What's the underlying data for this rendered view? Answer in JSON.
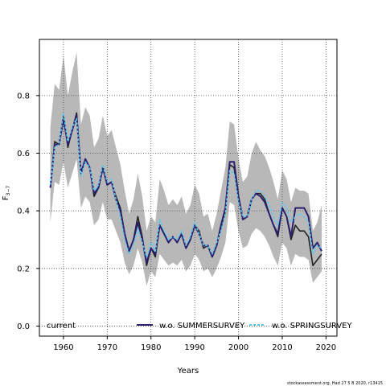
{
  "chart_data": {
    "type": "line",
    "xlabel": "Years",
    "ylabel": "F",
    "ylabel_sub": "3−7",
    "xlim": [
      1954.5,
      2022.5
    ],
    "ylim": [
      -0.035,
      0.995
    ],
    "xticks": [
      1960,
      1970,
      1980,
      1990,
      2000,
      2010,
      2020
    ],
    "yticks": [
      0.0,
      0.2,
      0.4,
      0.6,
      0.8
    ],
    "ytick_labels": [
      "0.0",
      "0.2",
      "0.4",
      "0.6",
      "0.8"
    ],
    "grid": "dotted",
    "legend_position": "bottom",
    "x": [
      1957,
      1958,
      1959,
      1960,
      1961,
      1962,
      1963,
      1964,
      1965,
      1966,
      1967,
      1968,
      1969,
      1970,
      1971,
      1972,
      1973,
      1974,
      1975,
      1976,
      1977,
      1978,
      1979,
      1980,
      1981,
      1982,
      1983,
      1984,
      1985,
      1986,
      1987,
      1988,
      1989,
      1990,
      1991,
      1992,
      1993,
      1994,
      1995,
      1996,
      1997,
      1998,
      1999,
      2000,
      2001,
      2002,
      2003,
      2004,
      2005,
      2006,
      2007,
      2008,
      2009,
      2010,
      2011,
      2012,
      2013,
      2014,
      2015,
      2016,
      2017,
      2018,
      2019
    ],
    "series": [
      {
        "name": "current",
        "color": "#222222",
        "dash": "",
        "values": [
          0.48,
          0.64,
          0.63,
          0.73,
          0.62,
          0.68,
          0.74,
          0.53,
          0.58,
          0.55,
          0.45,
          0.48,
          0.55,
          0.49,
          0.5,
          0.45,
          0.41,
          0.32,
          0.26,
          0.3,
          0.38,
          0.31,
          0.21,
          0.27,
          0.24,
          0.35,
          0.32,
          0.29,
          0.31,
          0.29,
          0.32,
          0.27,
          0.3,
          0.35,
          0.33,
          0.27,
          0.28,
          0.24,
          0.28,
          0.34,
          0.4,
          0.56,
          0.55,
          0.44,
          0.37,
          0.38,
          0.44,
          0.46,
          0.46,
          0.44,
          0.39,
          0.35,
          0.31,
          0.41,
          0.38,
          0.3,
          0.35,
          0.33,
          0.33,
          0.31,
          0.21,
          0.23,
          0.25
        ]
      },
      {
        "name": "w.o. SUMMERSURVEY",
        "color": "#2a1f6e",
        "dash": "",
        "values": [
          0.48,
          0.63,
          0.63,
          0.72,
          0.63,
          0.68,
          0.73,
          0.53,
          0.58,
          0.55,
          0.46,
          0.48,
          0.55,
          0.49,
          0.5,
          0.44,
          0.4,
          0.32,
          0.26,
          0.3,
          0.36,
          0.3,
          0.22,
          0.27,
          0.25,
          0.35,
          0.32,
          0.29,
          0.31,
          0.29,
          0.32,
          0.27,
          0.3,
          0.35,
          0.32,
          0.28,
          0.28,
          0.24,
          0.28,
          0.35,
          0.41,
          0.57,
          0.57,
          0.45,
          0.37,
          0.38,
          0.44,
          0.46,
          0.45,
          0.43,
          0.39,
          0.35,
          0.32,
          0.41,
          0.38,
          0.31,
          0.41,
          0.41,
          0.41,
          0.38,
          0.27,
          0.29,
          0.26
        ]
      },
      {
        "name": "w.o. SPRINGSURVEY",
        "color": "#5bc8ee",
        "dash": "3,2",
        "values": [
          0.49,
          0.62,
          0.63,
          0.74,
          0.64,
          0.69,
          0.72,
          0.52,
          0.57,
          0.55,
          0.47,
          0.49,
          0.56,
          0.5,
          0.51,
          0.44,
          0.38,
          0.3,
          0.25,
          0.28,
          0.34,
          0.29,
          0.24,
          0.29,
          0.26,
          0.37,
          0.33,
          0.3,
          0.31,
          0.3,
          0.33,
          0.28,
          0.31,
          0.36,
          0.32,
          0.28,
          0.28,
          0.25,
          0.29,
          0.33,
          0.39,
          0.54,
          0.53,
          0.43,
          0.38,
          0.38,
          0.44,
          0.47,
          0.47,
          0.45,
          0.42,
          0.38,
          0.35,
          0.43,
          0.41,
          0.36,
          0.38,
          0.39,
          0.38,
          0.36,
          0.25,
          0.28,
          0.27
        ]
      }
    ],
    "confidence_band": {
      "color": "#b8b8b8",
      "upper": [
        0.69,
        0.84,
        0.82,
        0.94,
        0.8,
        0.88,
        0.95,
        0.7,
        0.76,
        0.73,
        0.62,
        0.65,
        0.73,
        0.66,
        0.68,
        0.62,
        0.56,
        0.47,
        0.39,
        0.44,
        0.53,
        0.45,
        0.33,
        0.38,
        0.36,
        0.51,
        0.47,
        0.42,
        0.44,
        0.42,
        0.45,
        0.39,
        0.42,
        0.49,
        0.46,
        0.38,
        0.39,
        0.33,
        0.39,
        0.47,
        0.55,
        0.71,
        0.7,
        0.58,
        0.5,
        0.52,
        0.6,
        0.64,
        0.61,
        0.59,
        0.55,
        0.5,
        0.44,
        0.54,
        0.51,
        0.43,
        0.48,
        0.47,
        0.47,
        0.46,
        0.33,
        0.36,
        0.42
      ],
      "lower": [
        0.36,
        0.5,
        0.49,
        0.57,
        0.48,
        0.53,
        0.58,
        0.41,
        0.45,
        0.43,
        0.35,
        0.37,
        0.43,
        0.37,
        0.37,
        0.33,
        0.29,
        0.22,
        0.18,
        0.21,
        0.27,
        0.22,
        0.14,
        0.19,
        0.17,
        0.25,
        0.23,
        0.21,
        0.22,
        0.21,
        0.23,
        0.19,
        0.21,
        0.25,
        0.23,
        0.19,
        0.2,
        0.17,
        0.2,
        0.24,
        0.29,
        0.43,
        0.42,
        0.33,
        0.27,
        0.28,
        0.32,
        0.34,
        0.33,
        0.31,
        0.28,
        0.24,
        0.21,
        0.29,
        0.27,
        0.21,
        0.25,
        0.24,
        0.24,
        0.23,
        0.15,
        0.17,
        0.19
      ]
    }
  },
  "footer": {
    "credit": "stockassessment.org, Had 27 5 B 2020, r13415"
  }
}
